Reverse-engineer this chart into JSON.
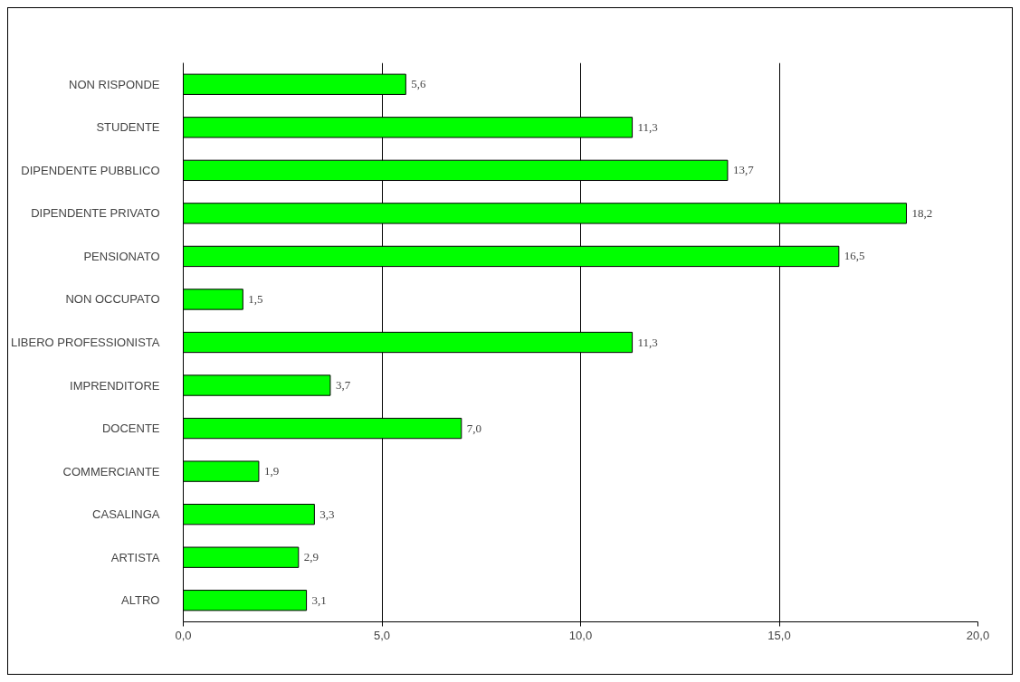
{
  "chart_data": {
    "type": "bar",
    "orientation": "horizontal",
    "categories": [
      "NON RISPONDE",
      "STUDENTE",
      "DIPENDENTE PUBBLICO",
      "DIPENDENTE PRIVATO",
      "PENSIONATO",
      "NON OCCUPATO",
      "LIBERO PROFESSIONISTA",
      "IMPRENDITORE",
      "DOCENTE",
      "COMMERCIANTE",
      "CASALINGA",
      "ARTISTA",
      "ALTRO"
    ],
    "values": [
      5.6,
      11.3,
      13.7,
      18.2,
      16.5,
      1.5,
      11.3,
      3.7,
      7.0,
      1.9,
      3.3,
      2.9,
      3.1
    ],
    "value_labels": [
      "5,6",
      "11,3",
      "13,7",
      "18,2",
      "16,5",
      "1,5",
      "11,3",
      "3,7",
      "7,0",
      "1,9",
      "3,3",
      "2,9",
      "3,1"
    ],
    "color": "#00ff00",
    "xlim": [
      0,
      20
    ],
    "xticks": [
      {
        "value": 0,
        "label": "0,0"
      },
      {
        "value": 5,
        "label": "5,0"
      },
      {
        "value": 10,
        "label": "10,0"
      },
      {
        "value": 15,
        "label": "15,0"
      },
      {
        "value": 20,
        "label": "20,0"
      }
    ],
    "grid": "x"
  }
}
